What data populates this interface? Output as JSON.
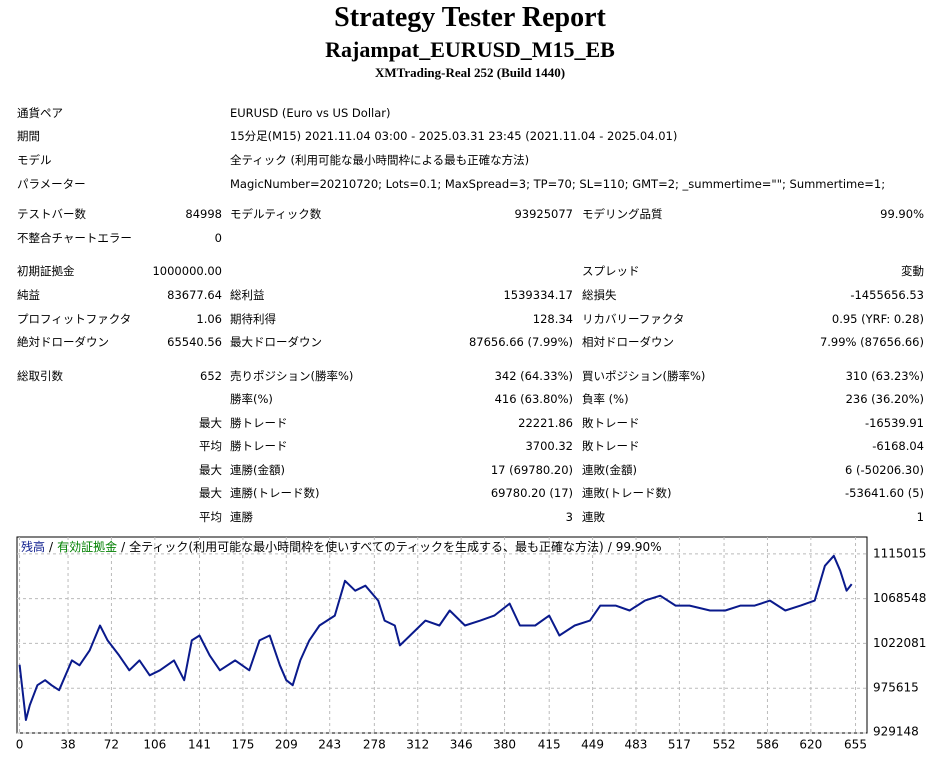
{
  "header": {
    "title": "Strategy Tester Report",
    "subtitle": "Rajampat_EURUSD_M15_EB",
    "build": "XMTrading-Real 252 (Build 1440)"
  },
  "info": [
    [
      "通貨ペア",
      "EURUSD (Euro vs US Dollar)"
    ],
    [
      "期間",
      "15分足(M15) 2021.11.04 03:00 - 2025.03.31 23:45 (2021.11.04 - 2025.04.01)"
    ],
    [
      "モデル",
      "全ティック (利用可能な最小時間枠による最も正確な方法)"
    ],
    [
      "パラメーター",
      "MagicNumber=20210720; Lots=0.1; MaxSpread=3; TP=70; SL=110; GMT=2; _summertime=\"\"; Summertime=1;"
    ]
  ],
  "stats": [
    [
      "テストバー数",
      "84998",
      "モデルティック数",
      "93925077",
      "モデリング品質",
      "99.90%"
    ],
    [
      "不整合チャートエラー",
      "0",
      null,
      null,
      null,
      null
    ],
    [
      "初期証拠金",
      "1000000.00",
      null,
      null,
      "スプレッド",
      "変動"
    ],
    [
      "純益",
      "83677.64",
      "総利益",
      "1539334.17",
      "総損失",
      "-1455656.53"
    ],
    [
      "プロフィットファクタ",
      "1.06",
      "期待利得",
      "128.34",
      "リカバリーファクタ",
      "0.95 (YRF: 0.28)"
    ],
    [
      "絶対ドローダウン",
      "65540.56",
      "最大ドローダウン",
      "87656.66 (7.99%)",
      "相対ドローダウン",
      "7.99% (87656.66)"
    ],
    [
      "総取引数",
      "652",
      "売りポジション(勝率%)",
      "342 (64.33%)",
      "買いポジション(勝率%)",
      "310 (63.23%)"
    ],
    [
      null,
      null,
      "勝率(%)",
      "416 (63.80%)",
      "負率 (%)",
      "236 (36.20%)"
    ],
    [
      null,
      "最大",
      "勝トレード",
      "22221.86",
      "敗トレード",
      "-16539.91"
    ],
    [
      null,
      "平均",
      "勝トレード",
      "3700.32",
      "敗トレード",
      "-6168.04"
    ],
    [
      null,
      "最大",
      "連勝(金額)",
      "17 (69780.20)",
      "連敗(金額)",
      "6 (-50206.30)"
    ],
    [
      null,
      "最大",
      "連勝(トレード数)",
      "69780.20 (17)",
      "連敗(トレード数)",
      "-53641.60 (5)"
    ],
    [
      null,
      "平均",
      "連勝",
      "3",
      "連敗",
      "1"
    ]
  ],
  "chart_data": {
    "type": "line",
    "separator": "/",
    "equity_label": "有効証拠金",
    "equity_color": "#008000",
    "model_note": "全ティック(利用可能な最小時間枠を使いすべてのティックを生成する、最も正確な方法)",
    "quality": "99.90%",
    "x": [
      0,
      5,
      8,
      14,
      20,
      25,
      31,
      41,
      47,
      55,
      63,
      69,
      78,
      86,
      94,
      102,
      110,
      121,
      129,
      135,
      141,
      149,
      157,
      169,
      180,
      188,
      196,
      204,
      209,
      214,
      220,
      227,
      235,
      247,
      255,
      263,
      271,
      281,
      286,
      294,
      298,
      306,
      318,
      329,
      337,
      349,
      361,
      372,
      384,
      392,
      404,
      415,
      423,
      435,
      447,
      455,
      467,
      478,
      490,
      502,
      514,
      525,
      541,
      553,
      565,
      576,
      588,
      600,
      612,
      623,
      631,
      638,
      643,
      648,
      652
    ],
    "series": [
      {
        "name": "残高",
        "color": "#0a1a8c",
        "values": [
          1000000,
          942600,
          958100,
          978700,
          983900,
          978700,
          973600,
          1004500,
          999400,
          1014900,
          1040700,
          1025200,
          1009700,
          994200,
          1004500,
          989000,
          994200,
          1004500,
          983900,
          1025200,
          1030300,
          1009700,
          994200,
          1004500,
          994200,
          1025200,
          1030300,
          999400,
          983900,
          978700,
          1004500,
          1025200,
          1040700,
          1051000,
          1087100,
          1076800,
          1082000,
          1066500,
          1045800,
          1040700,
          1020000,
          1030300,
          1045800,
          1040700,
          1056200,
          1040700,
          1045800,
          1051000,
          1063400,
          1040700,
          1040700,
          1051000,
          1030300,
          1040700,
          1045800,
          1061300,
          1061300,
          1056200,
          1066500,
          1071600,
          1061300,
          1061300,
          1056200,
          1056200,
          1061300,
          1061300,
          1066500,
          1056200,
          1061300,
          1066500,
          1102600,
          1113000,
          1097500,
          1076800,
          1083678
        ]
      }
    ],
    "xlim": [
      -2,
      664
    ],
    "ylim": [
      929148,
      1132500
    ],
    "xticks": [
      0,
      38,
      72,
      106,
      141,
      175,
      209,
      243,
      278,
      312,
      346,
      380,
      415,
      449,
      483,
      517,
      552,
      586,
      620,
      655
    ],
    "yticks": [
      929148,
      975615,
      1022081,
      1068548,
      1115015
    ],
    "grid": true
  }
}
